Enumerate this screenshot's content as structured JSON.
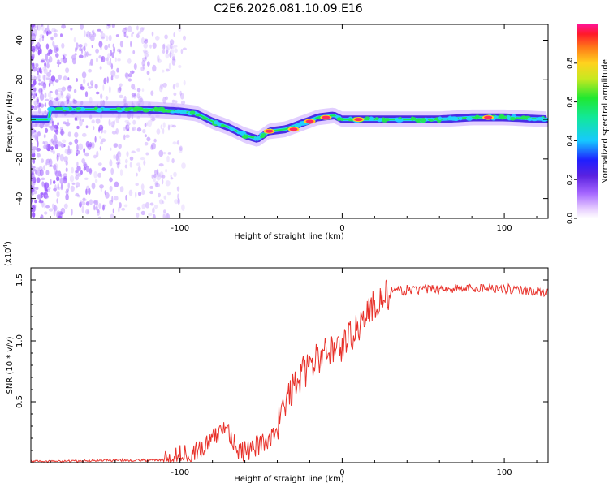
{
  "figure_title": "C2E6.2026.081.10.09.E16",
  "colors": {
    "snr_line": "#e8312a",
    "ridge_high": "#ff2a5f",
    "ridge_mid": "#21e84d",
    "ridge_low": "#22d2ff",
    "noise": "#9b59ff"
  },
  "chart_data": [
    {
      "type": "heatmap",
      "title": "",
      "xlabel": "Height of straight line (km)",
      "ylabel": "Frequency (Hz)",
      "xlim": [
        -192,
        127
      ],
      "ylim": [
        -50,
        48
      ],
      "xticks": [
        -100,
        0,
        100
      ],
      "xtick_labels": [
        "-100",
        "0",
        "100"
      ],
      "yticks": [
        -40,
        -20,
        0,
        20,
        40
      ],
      "ytick_labels": [
        "-40",
        "-20",
        "0",
        "20",
        "40"
      ],
      "ridge": [
        {
          "x": -180,
          "y": 5
        },
        {
          "x": -160,
          "y": 5
        },
        {
          "x": -140,
          "y": 5
        },
        {
          "x": -120,
          "y": 5
        },
        {
          "x": -100,
          "y": 4
        },
        {
          "x": -90,
          "y": 3
        },
        {
          "x": -80,
          "y": -1
        },
        {
          "x": -70,
          "y": -4
        },
        {
          "x": -60,
          "y": -8
        },
        {
          "x": -52,
          "y": -10
        },
        {
          "x": -45,
          "y": -6
        },
        {
          "x": -35,
          "y": -5
        },
        {
          "x": -25,
          "y": -2
        },
        {
          "x": -15,
          "y": 1
        },
        {
          "x": -5,
          "y": 2
        },
        {
          "x": 0,
          "y": 0
        },
        {
          "x": 10,
          "y": 0
        },
        {
          "x": 20,
          "y": 0
        },
        {
          "x": 40,
          "y": 0
        },
        {
          "x": 60,
          "y": 0
        },
        {
          "x": 80,
          "y": 1
        },
        {
          "x": 100,
          "y": 1
        },
        {
          "x": 127,
          "y": 0
        }
      ],
      "hotspots": [
        {
          "x": -45,
          "y": -6
        },
        {
          "x": -30,
          "y": -5
        },
        {
          "x": -20,
          "y": -1
        },
        {
          "x": -10,
          "y": 1
        },
        {
          "x": 10,
          "y": 0
        },
        {
          "x": 90,
          "y": 1
        }
      ],
      "colorbar": {
        "label": "Normalized spectral amplitude",
        "range": [
          0,
          1
        ],
        "ticks": [
          0.0,
          0.2,
          0.4,
          0.6,
          0.8
        ],
        "tick_labels": [
          "0.0",
          "0.2",
          "0.4",
          "0.6",
          "0.8"
        ]
      }
    },
    {
      "type": "line",
      "title": "",
      "xlabel": "Height of straight line (km)",
      "ylabel": "SNR (10 * v/v)",
      "ylabel_multiplier": "(x10",
      "ylabel_multiplier_exp": "4",
      "ylabel_multiplier_close": ")",
      "xlim": [
        -192,
        127
      ],
      "ylim": [
        0,
        1.6
      ],
      "xticks": [
        -100,
        0,
        100
      ],
      "xtick_labels": [
        "-100",
        "0",
        "100"
      ],
      "yticks": [
        0.5,
        1.0,
        1.5
      ],
      "ytick_labels": [
        "0.5",
        "1.0",
        "1.5"
      ],
      "series": [
        {
          "name": "SNR",
          "x": [
            -192,
            -170,
            -150,
            -130,
            -115,
            -105,
            -95,
            -85,
            -78,
            -72,
            -68,
            -64,
            -58,
            -52,
            -46,
            -40,
            -35,
            -30,
            -25,
            -20,
            -15,
            -10,
            -5,
            0,
            5,
            10,
            15,
            20,
            25,
            30,
            40,
            50,
            60,
            70,
            80,
            90,
            100,
            110,
            118,
            122,
            127
          ],
          "y": [
            0.01,
            0.01,
            0.02,
            0.02,
            0.02,
            0.03,
            0.08,
            0.12,
            0.22,
            0.3,
            0.22,
            0.08,
            0.1,
            0.14,
            0.18,
            0.3,
            0.48,
            0.62,
            0.72,
            0.8,
            0.85,
            0.9,
            0.95,
            0.95,
            1.05,
            1.12,
            1.22,
            1.3,
            1.35,
            1.4,
            1.42,
            1.42,
            1.43,
            1.43,
            1.43,
            1.44,
            1.43,
            1.42,
            1.41,
            1.4,
            1.4
          ]
        }
      ]
    }
  ]
}
